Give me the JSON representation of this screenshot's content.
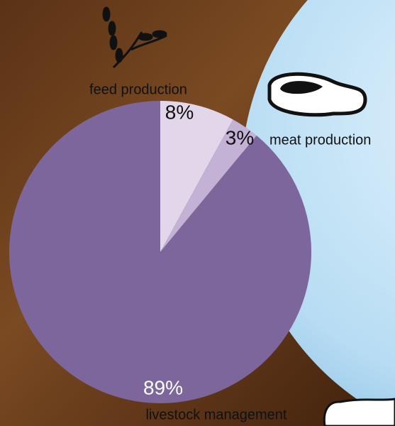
{
  "chart_data": {
    "type": "pie",
    "categories": [
      "feed production",
      "meat production",
      "livestock management"
    ],
    "values": [
      8,
      3,
      89
    ],
    "value_labels": [
      "8%",
      "3%",
      "89%"
    ],
    "colors": [
      "#e1d6ea",
      "#c3b1d6",
      "#7d669b"
    ]
  }
}
